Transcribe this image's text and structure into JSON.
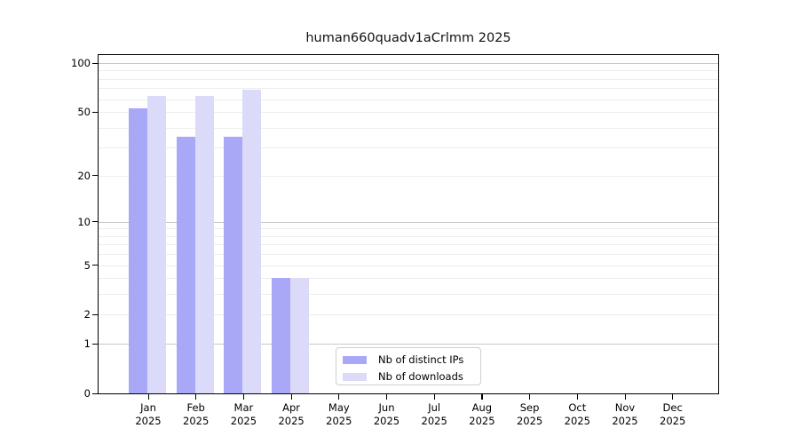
{
  "chart_data": {
    "type": "bar",
    "title": "human660quadv1aCrlmm 2025",
    "categories": [
      "Jan",
      "Feb",
      "Mar",
      "Apr",
      "May",
      "Jun",
      "Jul",
      "Aug",
      "Sep",
      "Oct",
      "Nov",
      "Dec"
    ],
    "year_label": "2025",
    "series": [
      {
        "name": "Nb of distinct IPs",
        "key": "distinct-ips",
        "color": "#a8a8f6",
        "values": [
          53,
          35,
          35,
          4,
          0,
          0,
          0,
          0,
          0,
          0,
          0,
          0
        ]
      },
      {
        "name": "Nb of downloads",
        "key": "downloads",
        "color": "#dbdbf9",
        "values": [
          63,
          63,
          69,
          4,
          0,
          0,
          0,
          0,
          0,
          0,
          0,
          0
        ]
      }
    ],
    "yscale": "log10(1+x)",
    "ylim": [
      0,
      112
    ],
    "yticks": [
      0,
      1,
      2,
      5,
      10,
      20,
      50,
      100
    ],
    "major_gridlines": [
      1,
      10,
      100
    ],
    "minor_gridlines": [
      2,
      3,
      4,
      5,
      6,
      7,
      8,
      9,
      20,
      30,
      40,
      50,
      60,
      70,
      80,
      90
    ],
    "grid": true,
    "legend_position": "lower center",
    "colors": {
      "axis": "#000000",
      "major_grid": "#c6c6c6",
      "minor_grid": "#ededed"
    }
  }
}
